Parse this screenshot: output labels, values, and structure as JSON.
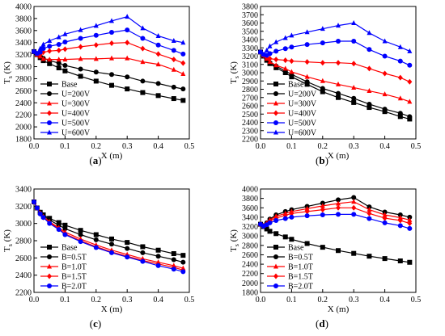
{
  "chart_data": [
    {
      "type": "line",
      "panel": "a",
      "caption": "(a)",
      "xlabel": "X (m)",
      "ylabel": "T",
      "ylabel_sub": "s",
      "ylabel_unit": " (K)",
      "xlim": [
        0.0,
        0.5
      ],
      "ylim": [
        1800,
        4000
      ],
      "xticks": [
        0.0,
        0.1,
        0.2,
        0.3,
        0.4,
        0.5
      ],
      "yticks": [
        1800,
        2000,
        2200,
        2400,
        2600,
        2800,
        3000,
        3200,
        3400,
        3600,
        3800,
        4000
      ],
      "legend_position": "lower-left",
      "series": [
        {
          "name": "Base",
          "color": "#000000",
          "marker": "square",
          "x": [
            0,
            0.01,
            0.02,
            0.03,
            0.05,
            0.08,
            0.1,
            0.15,
            0.2,
            0.25,
            0.3,
            0.35,
            0.4,
            0.45,
            0.48
          ],
          "y": [
            3250,
            3200,
            3150,
            3100,
            3050,
            2980,
            2930,
            2840,
            2760,
            2690,
            2630,
            2570,
            2520,
            2470,
            2440
          ]
        },
        {
          "name": "U=200V",
          "color": "#000000",
          "marker": "circle",
          "x": [
            0,
            0.01,
            0.02,
            0.03,
            0.05,
            0.08,
            0.1,
            0.15,
            0.2,
            0.25,
            0.3,
            0.35,
            0.4,
            0.45,
            0.48
          ],
          "y": [
            3250,
            3210,
            3170,
            3140,
            3100,
            3060,
            3020,
            2960,
            2910,
            2870,
            2830,
            2760,
            2720,
            2660,
            2630
          ]
        },
        {
          "name": "U=300V",
          "color": "#ff0000",
          "marker": "triangle",
          "x": [
            0,
            0.01,
            0.02,
            0.03,
            0.05,
            0.08,
            0.1,
            0.15,
            0.2,
            0.25,
            0.3,
            0.35,
            0.4,
            0.45,
            0.48
          ],
          "y": [
            3250,
            3200,
            3170,
            3130,
            3120,
            3120,
            3120,
            3130,
            3130,
            3140,
            3140,
            3080,
            3040,
            2950,
            2880
          ]
        },
        {
          "name": "U=400V",
          "color": "#ff0000",
          "marker": "diamond",
          "x": [
            0,
            0.01,
            0.02,
            0.03,
            0.05,
            0.08,
            0.1,
            0.15,
            0.2,
            0.25,
            0.3,
            0.35,
            0.4,
            0.45,
            0.48
          ],
          "y": [
            3250,
            3220,
            3200,
            3240,
            3260,
            3270,
            3290,
            3330,
            3360,
            3390,
            3400,
            3300,
            3210,
            3120,
            3060
          ]
        },
        {
          "name": "U=500V",
          "color": "#0000ff",
          "marker": "circle",
          "x": [
            0,
            0.01,
            0.02,
            0.03,
            0.05,
            0.08,
            0.1,
            0.15,
            0.2,
            0.25,
            0.3,
            0.35,
            0.4,
            0.45,
            0.48
          ],
          "y": [
            3250,
            3220,
            3240,
            3300,
            3340,
            3370,
            3410,
            3470,
            3520,
            3570,
            3610,
            3470,
            3360,
            3270,
            3210
          ]
        },
        {
          "name": "U=600V",
          "color": "#0000ff",
          "marker": "triangle",
          "x": [
            0,
            0.01,
            0.02,
            0.03,
            0.05,
            0.08,
            0.1,
            0.15,
            0.2,
            0.25,
            0.3,
            0.35,
            0.4,
            0.45,
            0.48
          ],
          "y": [
            3250,
            3220,
            3300,
            3370,
            3430,
            3490,
            3540,
            3610,
            3680,
            3760,
            3830,
            3640,
            3510,
            3430,
            3400
          ]
        }
      ]
    },
    {
      "type": "line",
      "panel": "b",
      "caption": "(b)",
      "xlabel": "X (m)",
      "ylabel": "T",
      "ylabel_sub": "s",
      "ylabel_unit": " (K)",
      "xlim": [
        0.0,
        0.5
      ],
      "ylim": [
        2200,
        3800
      ],
      "xticks": [
        0.0,
        0.1,
        0.2,
        0.3,
        0.4,
        0.5
      ],
      "yticks": [
        2200,
        2300,
        2400,
        2500,
        2600,
        2700,
        2800,
        2900,
        3000,
        3100,
        3200,
        3300,
        3400,
        3500,
        3600,
        3700,
        3800
      ],
      "legend_position": "lower-left",
      "series": [
        {
          "name": "Base",
          "color": "#000000",
          "marker": "square",
          "x": [
            0,
            0.01,
            0.02,
            0.03,
            0.05,
            0.08,
            0.1,
            0.15,
            0.2,
            0.25,
            0.3,
            0.35,
            0.4,
            0.45,
            0.48
          ],
          "y": [
            3250,
            3200,
            3150,
            3110,
            3060,
            3000,
            2950,
            2860,
            2770,
            2700,
            2640,
            2580,
            2530,
            2470,
            2440
          ]
        },
        {
          "name": "U=200V",
          "color": "#000000",
          "marker": "circle",
          "x": [
            0,
            0.01,
            0.02,
            0.03,
            0.05,
            0.08,
            0.1,
            0.15,
            0.2,
            0.25,
            0.3,
            0.35,
            0.4,
            0.45,
            0.48
          ],
          "y": [
            3250,
            3200,
            3160,
            3120,
            3080,
            3020,
            2980,
            2890,
            2810,
            2750,
            2690,
            2620,
            2560,
            2510,
            2470
          ]
        },
        {
          "name": "U=300V",
          "color": "#ff0000",
          "marker": "triangle",
          "x": [
            0,
            0.01,
            0.02,
            0.03,
            0.05,
            0.08,
            0.1,
            0.15,
            0.2,
            0.25,
            0.3,
            0.35,
            0.4,
            0.45,
            0.48
          ],
          "y": [
            3250,
            3210,
            3170,
            3130,
            3090,
            3050,
            3010,
            2950,
            2900,
            2860,
            2820,
            2780,
            2740,
            2690,
            2650
          ]
        },
        {
          "name": "U=400V",
          "color": "#ff0000",
          "marker": "diamond",
          "x": [
            0,
            0.01,
            0.02,
            0.03,
            0.05,
            0.08,
            0.1,
            0.15,
            0.2,
            0.25,
            0.3,
            0.35,
            0.4,
            0.45,
            0.48
          ],
          "y": [
            3250,
            3210,
            3180,
            3170,
            3160,
            3150,
            3140,
            3130,
            3120,
            3120,
            3110,
            3050,
            2990,
            2940,
            2890
          ]
        },
        {
          "name": "U=500V",
          "color": "#0000ff",
          "marker": "circle",
          "x": [
            0,
            0.01,
            0.02,
            0.03,
            0.05,
            0.08,
            0.1,
            0.15,
            0.2,
            0.25,
            0.3,
            0.35,
            0.4,
            0.45,
            0.48
          ],
          "y": [
            3250,
            3220,
            3210,
            3230,
            3260,
            3290,
            3310,
            3340,
            3360,
            3380,
            3380,
            3280,
            3200,
            3140,
            3090
          ]
        },
        {
          "name": "U=600V",
          "color": "#0000ff",
          "marker": "triangle",
          "x": [
            0,
            0.01,
            0.02,
            0.03,
            0.05,
            0.08,
            0.1,
            0.15,
            0.2,
            0.25,
            0.3,
            0.35,
            0.4,
            0.45,
            0.48
          ],
          "y": [
            3250,
            3220,
            3270,
            3320,
            3370,
            3420,
            3450,
            3490,
            3530,
            3570,
            3600,
            3480,
            3380,
            3310,
            3260
          ]
        }
      ]
    },
    {
      "type": "line",
      "panel": "c",
      "caption": "(c)",
      "xlabel": "X (m)",
      "ylabel": "T",
      "ylabel_sub": "s",
      "ylabel_unit": " (K)",
      "xlim": [
        0.0,
        0.5
      ],
      "ylim": [
        2200,
        3400
      ],
      "xticks": [
        0.0,
        0.1,
        0.2,
        0.3,
        0.4,
        0.5
      ],
      "yticks": [
        2200,
        2400,
        2600,
        2800,
        3000,
        3200,
        3400
      ],
      "legend_position": "lower-left",
      "series": [
        {
          "name": "Base",
          "color": "#000000",
          "marker": "square",
          "x": [
            0,
            0.01,
            0.02,
            0.03,
            0.05,
            0.08,
            0.1,
            0.15,
            0.2,
            0.25,
            0.3,
            0.35,
            0.4,
            0.45,
            0.48
          ],
          "y": [
            3250,
            3180,
            3130,
            3100,
            3060,
            3010,
            2980,
            2920,
            2870,
            2820,
            2780,
            2730,
            2690,
            2650,
            2630
          ]
        },
        {
          "name": "B=0.5T",
          "color": "#000000",
          "marker": "circle",
          "x": [
            0,
            0.01,
            0.02,
            0.03,
            0.05,
            0.08,
            0.1,
            0.15,
            0.2,
            0.25,
            0.3,
            0.35,
            0.4,
            0.45,
            0.48
          ],
          "y": [
            3250,
            3180,
            3130,
            3090,
            3040,
            2980,
            2940,
            2870,
            2810,
            2760,
            2710,
            2660,
            2620,
            2580,
            2550
          ]
        },
        {
          "name": "B=1.0T",
          "color": "#ff0000",
          "marker": "triangle",
          "x": [
            0,
            0.01,
            0.02,
            0.03,
            0.05,
            0.08,
            0.1,
            0.15,
            0.2,
            0.25,
            0.3,
            0.35,
            0.4,
            0.45,
            0.48
          ],
          "y": [
            3250,
            3180,
            3120,
            3080,
            3020,
            2950,
            2900,
            2820,
            2750,
            2690,
            2640,
            2590,
            2550,
            2510,
            2480
          ]
        },
        {
          "name": "B=1.5T",
          "color": "#ff0000",
          "marker": "diamond",
          "x": [
            0,
            0.01,
            0.02,
            0.03,
            0.05,
            0.08,
            0.1,
            0.15,
            0.2,
            0.25,
            0.3,
            0.35,
            0.4,
            0.45,
            0.48
          ],
          "y": [
            3250,
            3180,
            3120,
            3070,
            3010,
            2940,
            2880,
            2800,
            2730,
            2670,
            2620,
            2570,
            2530,
            2490,
            2460
          ]
        },
        {
          "name": "B=2.0T",
          "color": "#0000ff",
          "marker": "circle",
          "x": [
            0,
            0.01,
            0.02,
            0.03,
            0.05,
            0.08,
            0.1,
            0.15,
            0.2,
            0.25,
            0.3,
            0.35,
            0.4,
            0.45,
            0.48
          ],
          "y": [
            3250,
            3180,
            3110,
            3070,
            3000,
            2930,
            2870,
            2790,
            2720,
            2660,
            2610,
            2560,
            2510,
            2470,
            2440
          ]
        }
      ]
    },
    {
      "type": "line",
      "panel": "d",
      "caption": "(d)",
      "xlabel": "X (m)",
      "ylabel": "T",
      "ylabel_sub": "s",
      "ylabel_unit": " (K)",
      "xlim": [
        0.0,
        0.5
      ],
      "ylim": [
        1800,
        4000
      ],
      "xticks": [
        0.0,
        0.1,
        0.2,
        0.3,
        0.4,
        0.5
      ],
      "yticks": [
        1800,
        2000,
        2200,
        2400,
        2600,
        2800,
        3000,
        3200,
        3400,
        3600,
        3800,
        4000
      ],
      "legend_position": "lower-left",
      "series": [
        {
          "name": "Base",
          "color": "#000000",
          "marker": "square",
          "x": [
            0,
            0.01,
            0.02,
            0.03,
            0.05,
            0.08,
            0.1,
            0.15,
            0.2,
            0.25,
            0.3,
            0.35,
            0.4,
            0.45,
            0.48
          ],
          "y": [
            3250,
            3200,
            3150,
            3100,
            3050,
            2980,
            2930,
            2840,
            2760,
            2690,
            2630,
            2570,
            2520,
            2470,
            2440
          ]
        },
        {
          "name": "B=0.5T",
          "color": "#000000",
          "marker": "circle",
          "x": [
            0,
            0.01,
            0.02,
            0.03,
            0.05,
            0.08,
            0.1,
            0.15,
            0.2,
            0.25,
            0.3,
            0.35,
            0.4,
            0.45,
            0.48
          ],
          "y": [
            3250,
            3220,
            3280,
            3360,
            3450,
            3520,
            3560,
            3630,
            3700,
            3770,
            3820,
            3620,
            3510,
            3450,
            3400
          ]
        },
        {
          "name": "B=1.0T",
          "color": "#ff0000",
          "marker": "triangle",
          "x": [
            0,
            0.01,
            0.02,
            0.03,
            0.05,
            0.08,
            0.1,
            0.15,
            0.2,
            0.25,
            0.3,
            0.35,
            0.4,
            0.45,
            0.48
          ],
          "y": [
            3250,
            3220,
            3270,
            3340,
            3420,
            3480,
            3520,
            3580,
            3640,
            3690,
            3730,
            3560,
            3450,
            3390,
            3340
          ]
        },
        {
          "name": "B=1.5T",
          "color": "#ff0000",
          "marker": "diamond",
          "x": [
            0,
            0.01,
            0.02,
            0.03,
            0.05,
            0.08,
            0.1,
            0.15,
            0.2,
            0.25,
            0.3,
            0.35,
            0.4,
            0.45,
            0.48
          ],
          "y": [
            3250,
            3210,
            3260,
            3320,
            3380,
            3440,
            3480,
            3520,
            3560,
            3600,
            3600,
            3480,
            3380,
            3330,
            3270
          ]
        },
        {
          "name": "B=2.0T",
          "color": "#0000ff",
          "marker": "circle",
          "x": [
            0,
            0.01,
            0.02,
            0.03,
            0.05,
            0.08,
            0.1,
            0.15,
            0.2,
            0.25,
            0.3,
            0.35,
            0.4,
            0.45,
            0.48
          ],
          "y": [
            3250,
            3210,
            3240,
            3280,
            3330,
            3370,
            3400,
            3430,
            3450,
            3460,
            3460,
            3370,
            3280,
            3220,
            3160
          ]
        }
      ]
    }
  ]
}
